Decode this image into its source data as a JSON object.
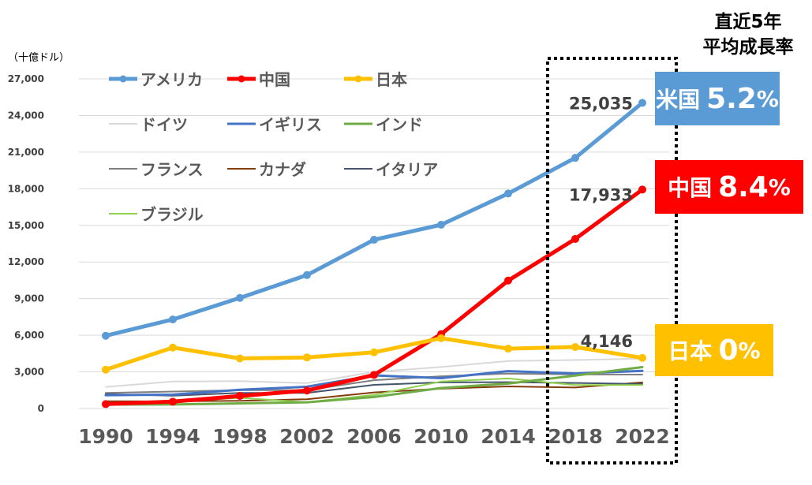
{
  "header": {
    "line1": "直近5年",
    "line2": "平均成長率"
  },
  "badges": [
    {
      "country": "米国",
      "rate": "5.2",
      "unit": "%",
      "color": "#5B9BD5"
    },
    {
      "country": "中国",
      "rate": "8.4",
      "unit": "%",
      "color": "#FF0000"
    },
    {
      "country": "日本",
      "rate": "0",
      "unit": "%",
      "color": "#FFC000"
    }
  ],
  "chart_data": {
    "type": "line",
    "unit_label": "（十億ドル）",
    "x": [
      1990,
      1994,
      1998,
      2002,
      2006,
      2010,
      2014,
      2018,
      2022
    ],
    "x_tick_labels": [
      "1990",
      "1994",
      "1998",
      "2002",
      "2006",
      "2010",
      "2014",
      "2018",
      "2022"
    ],
    "ylim": [
      0,
      27000
    ],
    "y_ticks": [
      0,
      3000,
      6000,
      9000,
      12000,
      15000,
      18000,
      21000,
      24000,
      27000
    ],
    "y_tick_labels": [
      "0",
      "3,000",
      "6,000",
      "9,000",
      "12,000",
      "15,000",
      "18,000",
      "21,000",
      "24,000",
      "27,000"
    ],
    "grid": true,
    "legend_position": "top-left",
    "highlight_range": [
      2018,
      2022
    ],
    "series": [
      {
        "name": "アメリカ",
        "color": "#5B9BD5",
        "markers": true,
        "emphasis": "thick",
        "values": [
          5960,
          7290,
          9060,
          10930,
          13820,
          15050,
          17610,
          20530,
          25035
        ]
      },
      {
        "name": "中国",
        "color": "#FF0000",
        "markers": true,
        "emphasis": "thick",
        "values": [
          360,
          560,
          1030,
          1470,
          2750,
          6090,
          10480,
          13890,
          17933
        ]
      },
      {
        "name": "日本",
        "color": "#FFC000",
        "markers": true,
        "emphasis": "thick",
        "values": [
          3180,
          4990,
          4100,
          4180,
          4600,
          5760,
          4900,
          5040,
          4146
        ]
      },
      {
        "name": "ドイツ",
        "color": "#D9D9D9",
        "markers": false,
        "emphasis": "thin",
        "values": [
          1770,
          2210,
          2240,
          2080,
          3000,
          3400,
          3890,
          3970,
          4080
        ]
      },
      {
        "name": "イギリス",
        "color": "#4472C4",
        "markers": false,
        "emphasis": "medium",
        "values": [
          1090,
          1140,
          1540,
          1780,
          2710,
          2490,
          3060,
          2870,
          3080
        ]
      },
      {
        "name": "インド",
        "color": "#70AD47",
        "markers": false,
        "emphasis": "medium",
        "values": [
          320,
          330,
          420,
          510,
          940,
          1680,
          2040,
          2700,
          3390
        ]
      },
      {
        "name": "フランス",
        "color": "#7F7F7F",
        "markers": false,
        "emphasis": "thin",
        "values": [
          1270,
          1390,
          1500,
          1500,
          2320,
          2640,
          2860,
          2790,
          2780
        ]
      },
      {
        "name": "カナダ",
        "color": "#843C0C",
        "markers": false,
        "emphasis": "thin",
        "values": [
          600,
          580,
          630,
          760,
          1320,
          1620,
          1810,
          1720,
          2140
        ]
      },
      {
        "name": "イタリア",
        "color": "#44546A",
        "markers": false,
        "emphasis": "thin",
        "values": [
          1180,
          1050,
          1270,
          1270,
          1940,
          2140,
          2160,
          2090,
          2010
        ]
      },
      {
        "name": "ブラジル",
        "color": "#92D050",
        "markers": false,
        "emphasis": "thin",
        "values": [
          460,
          560,
          870,
          510,
          1110,
          2210,
          2460,
          1920,
          1920
        ]
      }
    ],
    "annotations": [
      {
        "text": "25,035",
        "x": 2022,
        "y": 25035
      },
      {
        "text": "17,933",
        "x": 2022,
        "y": 17933
      },
      {
        "text": "4,146",
        "x": 2022,
        "y": 4146
      }
    ]
  }
}
